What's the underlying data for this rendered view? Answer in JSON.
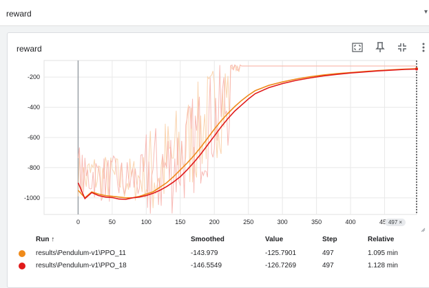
{
  "search": {
    "value": "reward"
  },
  "card": {
    "title": "reward"
  },
  "toolbar": {
    "icons": [
      "fullscreen-icon",
      "pin-icon",
      "fit-domain-icon",
      "more-vert-icon"
    ]
  },
  "step_badge": {
    "label": "497",
    "close": "×"
  },
  "table": {
    "headers": {
      "run": "Run ↑",
      "smoothed": "Smoothed",
      "value": "Value",
      "step": "Step",
      "relative": "Relative"
    },
    "rows": [
      {
        "color": "#ef8a1a",
        "run": "results\\Pendulum-v1\\PPO_11",
        "smoothed": "-143.979",
        "value": "-125.7901",
        "step": "497",
        "relative": "1.095 min"
      },
      {
        "color": "#e0191a",
        "run": "results\\Pendulum-v1\\PPO_18",
        "smoothed": "-146.5549",
        "value": "-126.7269",
        "step": "497",
        "relative": "1.128 min"
      }
    ]
  },
  "chart_data": {
    "type": "line",
    "x_ticks": [
      0,
      50,
      100,
      150,
      200,
      250,
      300,
      350,
      400,
      450
    ],
    "y_ticks": [
      -1000,
      -800,
      -600,
      -400,
      -200
    ],
    "xlim": [
      -50,
      497
    ],
    "ylim": [
      -1110,
      -90
    ],
    "grid": true,
    "hover_step": 497,
    "series": [
      {
        "name": "results\\Pendulum-v1\\PPO_11",
        "color": "#ef8a1a",
        "raw_color": "#f9cfa6",
        "x": [
          0,
          10,
          20,
          30,
          40,
          50,
          60,
          70,
          80,
          90,
          100,
          110,
          120,
          130,
          140,
          150,
          160,
          170,
          180,
          190,
          200,
          210,
          220,
          230,
          240,
          250,
          260,
          280,
          300,
          320,
          340,
          360,
          380,
          400,
          420,
          440,
          460,
          480,
          497
        ],
        "y": [
          -950,
          -1000,
          -960,
          -975,
          -985,
          -990,
          -995,
          -1000,
          -1000,
          -990,
          -975,
          -960,
          -930,
          -900,
          -860,
          -815,
          -770,
          -720,
          -665,
          -605,
          -545,
          -490,
          -440,
          -395,
          -355,
          -320,
          -290,
          -255,
          -232,
          -213,
          -198,
          -186,
          -177,
          -170,
          -163,
          -157,
          -152,
          -147,
          -144
        ]
      },
      {
        "name": "results\\Pendulum-v1\\PPO_18",
        "color": "#e0191a",
        "raw_color": "#f7b3ad",
        "x": [
          0,
          10,
          20,
          30,
          40,
          50,
          60,
          70,
          80,
          90,
          100,
          110,
          120,
          130,
          140,
          150,
          160,
          170,
          180,
          190,
          200,
          210,
          220,
          230,
          240,
          250,
          260,
          280,
          300,
          320,
          340,
          360,
          380,
          400,
          420,
          440,
          460,
          480,
          497
        ],
        "y": [
          -900,
          -1005,
          -965,
          -985,
          -995,
          -998,
          -1008,
          -1010,
          -1000,
          -995,
          -985,
          -970,
          -950,
          -925,
          -895,
          -860,
          -815,
          -765,
          -710,
          -650,
          -590,
          -530,
          -475,
          -425,
          -385,
          -345,
          -310,
          -270,
          -243,
          -222,
          -206,
          -192,
          -182,
          -173,
          -166,
          -159,
          -154,
          -149,
          -147
        ]
      }
    ]
  }
}
